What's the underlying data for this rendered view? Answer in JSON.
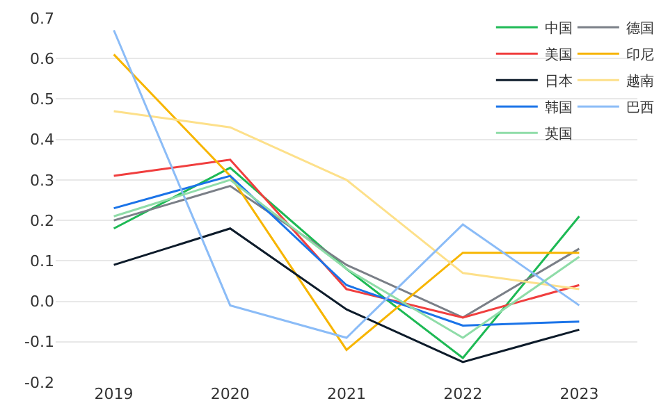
{
  "chart_data": {
    "type": "line",
    "categories": [
      "2019",
      "2020",
      "2021",
      "2022",
      "2023"
    ],
    "series": [
      {
        "name": "中国",
        "color": "#1db954",
        "values": [
          0.18,
          0.33,
          0.08,
          -0.14,
          0.21
        ]
      },
      {
        "name": "德国",
        "color": "#7a7f87",
        "values": [
          0.2,
          0.285,
          0.09,
          -0.04,
          0.13
        ]
      },
      {
        "name": "美国",
        "color": "#f03e3e",
        "values": [
          0.31,
          0.35,
          0.03,
          -0.04,
          0.04
        ]
      },
      {
        "name": "印尼",
        "color": "#f7b500",
        "values": [
          0.61,
          0.31,
          -0.12,
          0.12,
          0.12
        ]
      },
      {
        "name": "日本",
        "color": "#0d1b2a",
        "values": [
          0.09,
          0.18,
          -0.02,
          -0.15,
          -0.07
        ]
      },
      {
        "name": "越南",
        "color": "#fde08a",
        "values": [
          0.47,
          0.43,
          0.3,
          0.07,
          0.03
        ]
      },
      {
        "name": "韩国",
        "color": "#1a73e8",
        "values": [
          0.23,
          0.31,
          0.04,
          -0.06,
          -0.05
        ]
      },
      {
        "name": "巴西",
        "color": "#8bbcf7",
        "values": [
          0.67,
          -0.01,
          -0.09,
          0.19,
          -0.01
        ]
      },
      {
        "name": "英国",
        "color": "#8fdca8",
        "values": [
          0.21,
          0.3,
          0.08,
          -0.09,
          0.11
        ]
      }
    ],
    "ylim": [
      -0.2,
      0.7
    ],
    "yticks": [
      {
        "value": -0.2,
        "label": "-0.2"
      },
      {
        "value": -0.1,
        "label": "-0.1"
      },
      {
        "value": 0,
        "label": "0.0"
      },
      {
        "value": 0.1,
        "label": "0.1"
      },
      {
        "value": 0.2,
        "label": "0.2"
      },
      {
        "value": 0.3,
        "label": "0.3"
      },
      {
        "value": 0.4,
        "label": "0.4"
      },
      {
        "value": 0.5,
        "label": "0.5"
      },
      {
        "value": 0.6,
        "label": "0.6"
      },
      {
        "value": 0.7,
        "label": "0.7"
      }
    ],
    "grid": "y",
    "legend": "top right",
    "marker": "none",
    "line_style": "solid"
  }
}
